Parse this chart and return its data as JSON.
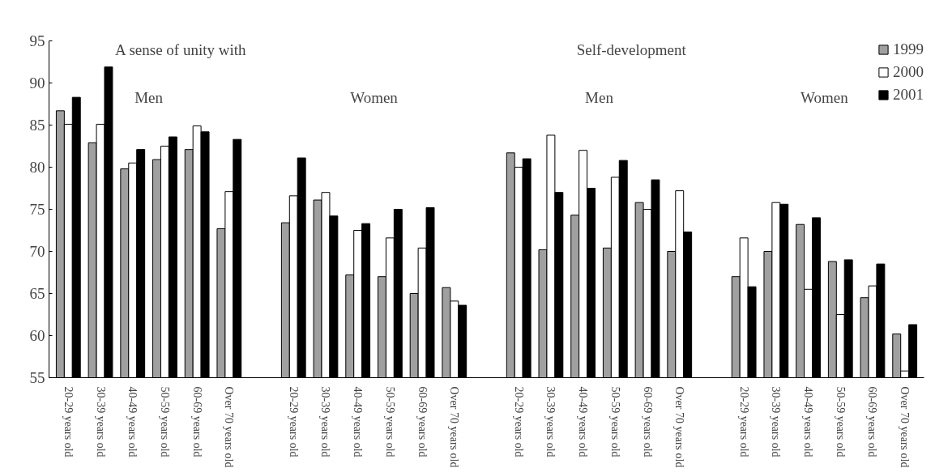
{
  "chart_data": {
    "type": "bar",
    "categories": [
      "20-29 years old",
      "30-39 years old",
      "40-49 years old",
      "50-59 years old",
      "60-69 years old",
      "Over 70 years old",
      null,
      "20-29 years old",
      "30-39 years old",
      "40-49 years old",
      "50-59 years old",
      "60-69 years old",
      "Over 70 years old",
      null,
      "20-29 years old",
      "30-39 years old",
      "40-49 years old",
      "50-59 years old",
      "60-69 years old",
      "Over 70 years old",
      null,
      "20-29 years old",
      "30-39 years old",
      "40-49 years old",
      "50-59 years old",
      "60-69 years old",
      "Over 70 years old"
    ],
    "series": [
      {
        "name": "1999",
        "color": "#a0a0a0",
        "values": [
          86.7,
          82.9,
          79.8,
          80.9,
          82.1,
          72.7,
          null,
          73.4,
          76.1,
          67.2,
          67.0,
          65.0,
          65.7,
          null,
          81.7,
          70.2,
          74.3,
          70.4,
          75.8,
          70.0,
          null,
          67.0,
          70.0,
          73.2,
          68.8,
          64.5,
          60.2
        ]
      },
      {
        "name": "2000",
        "color": "#ffffff",
        "values": [
          85.1,
          85.1,
          80.5,
          82.5,
          84.9,
          77.1,
          null,
          76.6,
          77.0,
          72.5,
          71.6,
          70.4,
          64.1,
          null,
          80.0,
          83.8,
          82.0,
          78.8,
          75.0,
          77.2,
          null,
          71.6,
          75.8,
          65.5,
          62.5,
          65.9,
          55.8
        ]
      },
      {
        "name": "2001",
        "color": "#000000",
        "values": [
          88.3,
          91.9,
          82.1,
          83.6,
          84.2,
          83.3,
          null,
          81.1,
          74.2,
          73.3,
          75.0,
          75.2,
          63.6,
          null,
          81.0,
          77.0,
          77.5,
          80.8,
          78.5,
          72.3,
          null,
          65.8,
          75.6,
          74.0,
          69.0,
          68.5,
          61.3
        ]
      }
    ],
    "ylim": [
      55,
      95
    ],
    "yticks": [
      55,
      60,
      65,
      70,
      75,
      80,
      85,
      90,
      95
    ],
    "grid": false,
    "legend": "top right",
    "annotations": [
      "A sense of unity with",
      "Self-development",
      "Men",
      "Women",
      "Men",
      "Women"
    ]
  }
}
